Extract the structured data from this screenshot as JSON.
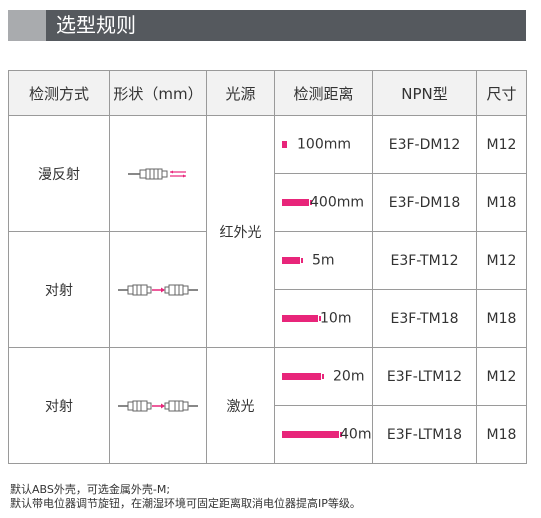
{
  "section_title": "选型规则",
  "headers": [
    "检测方式",
    "形状（mm）",
    "光源",
    "检测距离",
    "NPN型",
    "尺寸"
  ],
  "groups": [
    {
      "mode": "漫反射",
      "shape_icon": "diffuse-sensor-icon"
    },
    {
      "mode": "对射",
      "shape_icon": "through-beam-sensor-icon"
    },
    {
      "mode": "对射",
      "shape_icon": "through-beam-sensor-icon"
    }
  ],
  "light_sources": [
    "红外光",
    "激光"
  ],
  "rows": [
    {
      "distance": "100mm",
      "fill": 0.05,
      "model": "E3F-DM12",
      "size": "M12"
    },
    {
      "distance": "400mm",
      "fill": 0.3,
      "model": "E3F-DM18",
      "size": "M18"
    },
    {
      "distance": "5m",
      "fill": 0.2,
      "model": "E3F-TM12",
      "size": "M12"
    },
    {
      "distance": "10m",
      "fill": 0.4,
      "model": "E3F-TM18",
      "size": "M18"
    },
    {
      "distance": "20m",
      "fill": 0.43,
      "model": "E3F-LTM12",
      "size": "M12"
    },
    {
      "distance": "40m",
      "fill": 0.63,
      "model": "E3F-LTM18",
      "size": "M18"
    }
  ],
  "notes": [
    "默认ABS外壳，可选金属外壳-M;",
    "默认带电位器调节旋钮，在潮湿环境可固定距离取消电位器提高IP等级。"
  ],
  "colors": {
    "header_bg": "#55595e",
    "accent": "#a9abae",
    "bar": "#e8257a"
  }
}
